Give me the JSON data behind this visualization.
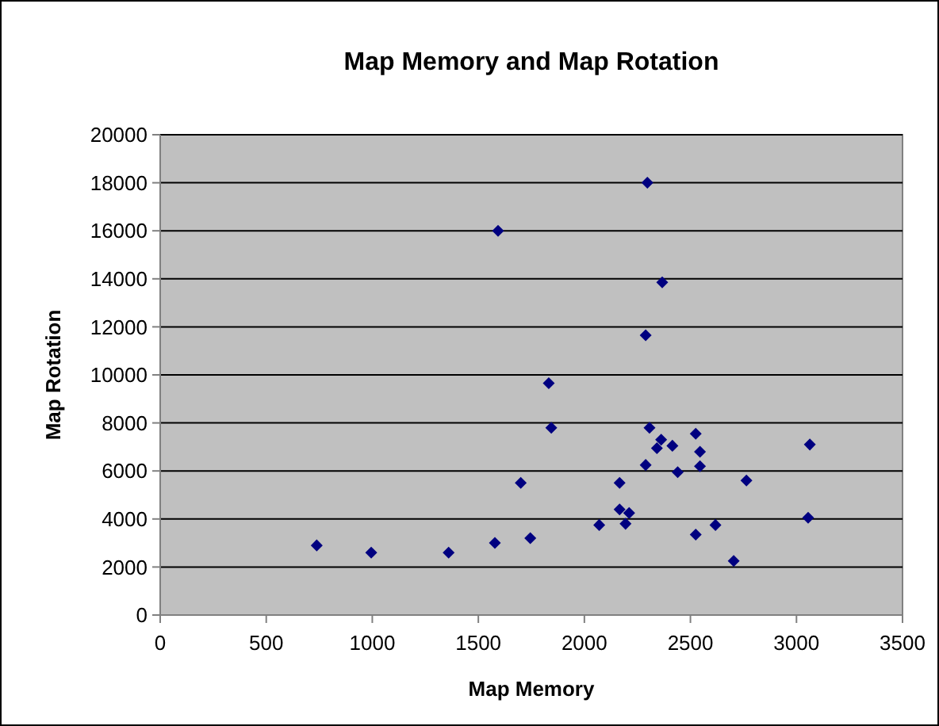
{
  "chart_data": {
    "type": "scatter",
    "title": "Map Memory and Map Rotation",
    "xlabel": "Map Memory",
    "ylabel": "Map Rotation",
    "x": [
      738,
      995,
      1360,
      1578,
      1593,
      1700,
      1745,
      1832,
      1844,
      2070,
      2166,
      2166,
      2211,
      2194,
      2297,
      2367,
      2289,
      2307,
      2289,
      2362,
      2342,
      2415,
      2440,
      2525,
      2545,
      2545,
      2525,
      2618,
      2704,
      2764,
      3063,
      3055
    ],
    "values": [
      2900,
      2600,
      2600,
      3000,
      16000,
      5500,
      3200,
      9650,
      7800,
      3750,
      5500,
      4400,
      4250,
      3800,
      18000,
      13850,
      11650,
      7800,
      6250,
      7300,
      6950,
      7050,
      5950,
      7550,
      6800,
      6200,
      3350,
      3750,
      2250,
      5600,
      7100,
      4050
    ],
    "color": "#000080",
    "marker": "diamond",
    "xlim": [
      0,
      3500
    ],
    "xticks": [
      0,
      500,
      1000,
      1500,
      2000,
      2500,
      3000,
      3500
    ],
    "ylim": [
      0,
      20000
    ],
    "yticks": [
      0,
      2000,
      4000,
      6000,
      8000,
      10000,
      12000,
      14000,
      16000,
      18000,
      20000
    ],
    "grid": "y"
  }
}
